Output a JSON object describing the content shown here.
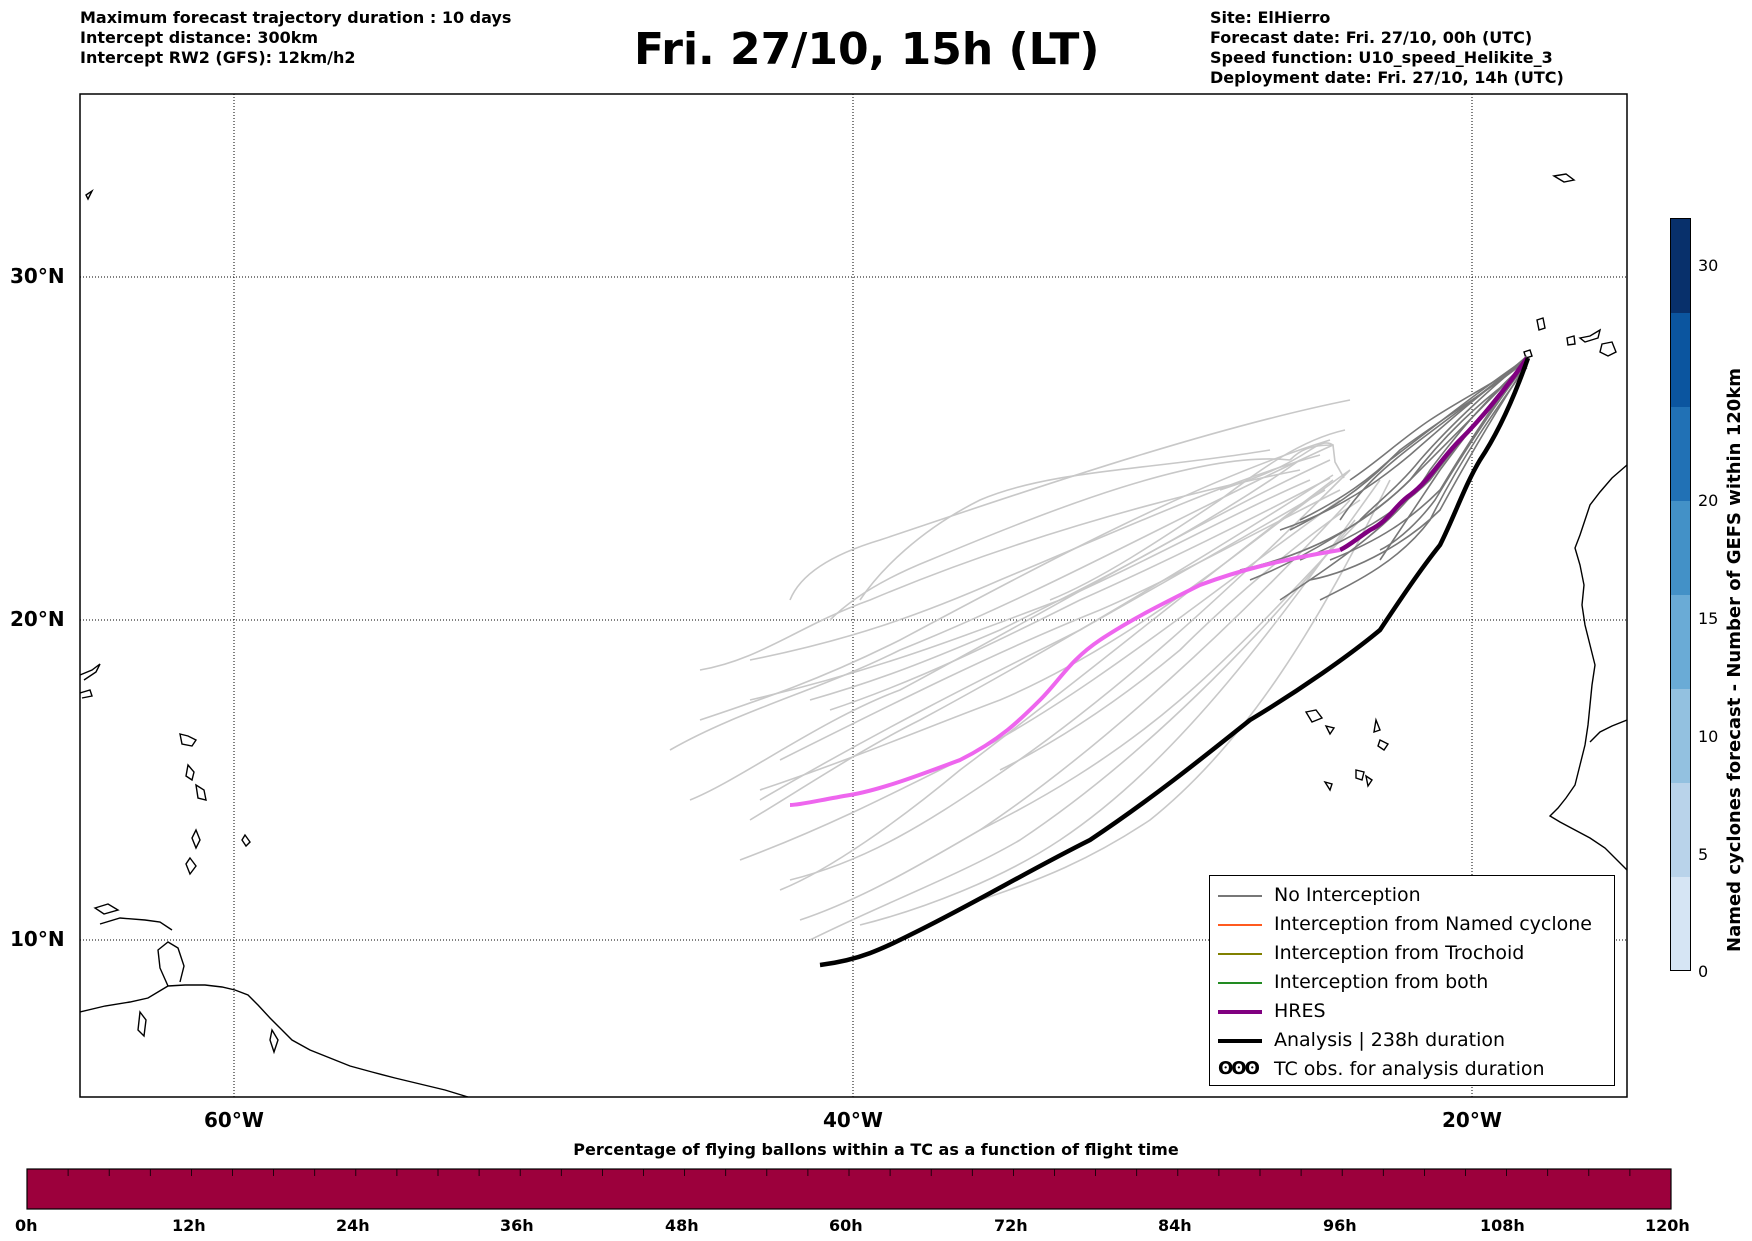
{
  "header": {
    "left_lines": [
      "Maximum forecast trajectory duration : 10 days",
      "Intercept distance: 300km",
      "Intercept RW2 (GFS):  12km/h2"
    ],
    "title": "Fri. 27/10, 15h (LT)",
    "right_lines": [
      "Site: ElHierro",
      "Forecast date: Fri. 27/10, 00h (UTC)",
      "Speed function: U10_speed_Helikite_3",
      "Deployment date: Fri. 27/10, 14h (UTC)"
    ]
  },
  "map": {
    "lat_labels": [
      "30°N",
      "20°N",
      "10°N"
    ],
    "lon_labels": [
      "60°W",
      "40°W",
      "20°W"
    ],
    "colors": {
      "no_interception": "#777777",
      "interception_named": "#ff5a1f",
      "interception_trochoid": "#808000",
      "interception_both": "#228b22",
      "hres": "#800080",
      "hres_late": "#ee66ee",
      "analysis": "#000000",
      "ensemble_faint": "#c8c8c8"
    }
  },
  "legend": {
    "items": [
      {
        "label": "No Interception",
        "color": "#777777"
      },
      {
        "label": "Interception from Named cyclone",
        "color": "#ff5a1f"
      },
      {
        "label": "Interception from Trochoid",
        "color": "#808000"
      },
      {
        "label": "Interception from both",
        "color": "#228b22"
      },
      {
        "label": "HRES",
        "color": "#800080"
      },
      {
        "label": "Analysis | 238h duration",
        "color": "#000000"
      },
      {
        "label": "TC obs. for analysis duration",
        "color": "#000000"
      }
    ],
    "tc_symbol": "ʘʘʘ"
  },
  "colorbar": {
    "title": "Named cyclones forecast - Number of GEFS within 120km",
    "ticks": [
      "30",
      "20",
      "15",
      "10",
      "5",
      "0"
    ],
    "colors": [
      "#d6e5f4",
      "#b9d3ea",
      "#93c1e0",
      "#6aabd6",
      "#4391c7",
      "#2171b5",
      "#0b559f",
      "#08306b"
    ]
  },
  "bottom_bar": {
    "title": "Percentage of flying ballons within a TC as a function of flight time",
    "color": "#9c003c",
    "ticks": [
      "0h",
      "12h",
      "24h",
      "36h",
      "48h",
      "60h",
      "72h",
      "84h",
      "96h",
      "108h",
      "120h"
    ]
  }
}
